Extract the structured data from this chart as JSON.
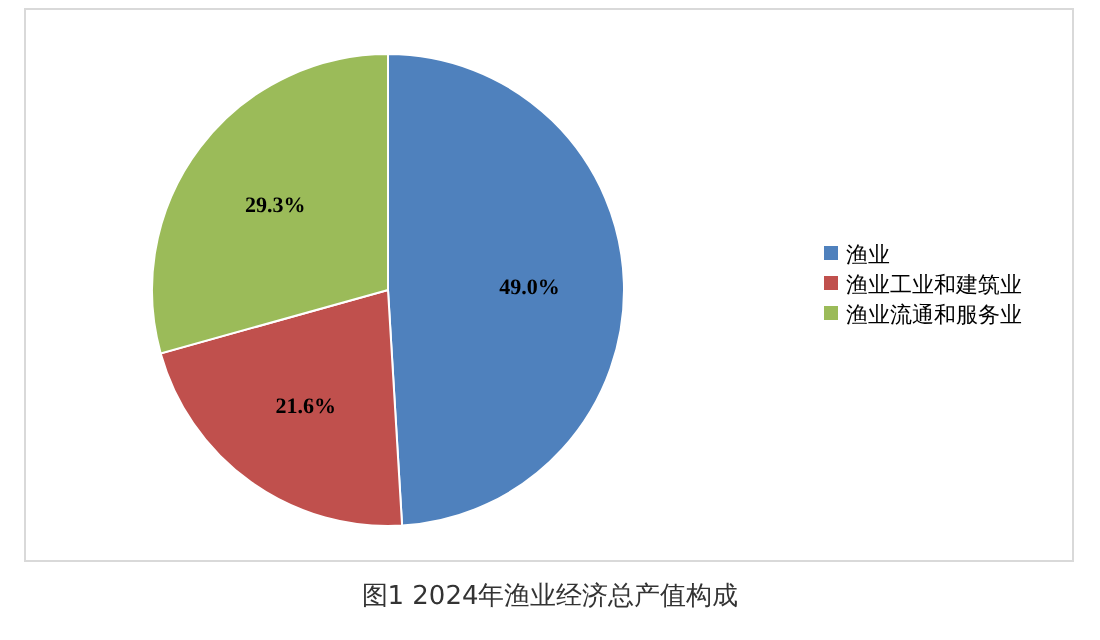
{
  "chart_data": {
    "type": "pie",
    "title": "图1  2024年渔业经济总产值构成",
    "categories": [
      "渔业",
      "渔业工业和建筑业",
      "渔业流通和服务业"
    ],
    "values": [
      49.0,
      21.6,
      29.3
    ],
    "colors": [
      "#4f81bd",
      "#c0504d",
      "#9bbb59"
    ],
    "value_labels": [
      "49.0%",
      "21.6%",
      "29.3%"
    ],
    "legend": "right"
  }
}
